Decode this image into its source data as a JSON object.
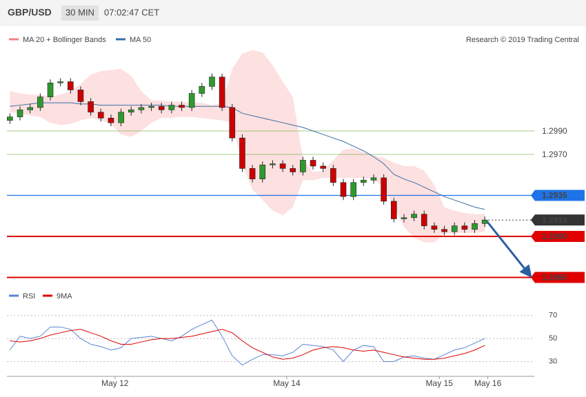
{
  "header": {
    "symbol": "GBP/USD",
    "interval": "30 MIN",
    "time": "07:02:47 CET"
  },
  "credit": "Research © 2019 Trading Central",
  "chart_data": [
    {
      "type": "candlestick",
      "up_color": "#2e9a2e",
      "down_color": "#cc0000",
      "open": [
        1.2999,
        1.3002,
        1.3008,
        1.301,
        1.3019,
        1.3031,
        1.3032,
        1.3025,
        1.3015,
        1.3006,
        1.3001,
        1.2997,
        1.3006,
        1.3008,
        1.301,
        1.3011,
        1.3008,
        1.3012,
        1.301,
        1.3022,
        1.3028,
        1.3036,
        1.301,
        1.2984,
        1.2958,
        1.2949,
        1.2961,
        1.2962,
        1.2958,
        1.2955,
        1.2965,
        1.296,
        1.2958,
        1.2946,
        1.2934,
        1.2946,
        1.2948,
        1.295,
        1.293,
        1.2915,
        1.2916,
        1.2919,
        1.2909,
        1.2906,
        1.2904,
        1.2909,
        1.2906,
        1.2911
      ],
      "high": [
        1.3005,
        1.3011,
        1.3013,
        1.3022,
        1.3034,
        1.3035,
        1.3035,
        1.3028,
        1.3018,
        1.3009,
        1.3004,
        1.3009,
        1.3011,
        1.3013,
        1.3014,
        1.3014,
        1.3015,
        1.3015,
        1.3025,
        1.3031,
        1.3039,
        1.3039,
        1.3013,
        1.2987,
        1.2961,
        1.2964,
        1.2965,
        1.2965,
        1.2961,
        1.2968,
        1.2968,
        1.2963,
        1.2961,
        1.2949,
        1.2949,
        1.2951,
        1.2953,
        1.2953,
        1.2933,
        1.2919,
        1.2922,
        1.2922,
        1.2912,
        1.2909,
        1.2912,
        1.2912,
        1.2914,
        1.2917
      ],
      "low": [
        1.2996,
        1.2999,
        1.3005,
        1.3007,
        1.3016,
        1.3028,
        1.3022,
        1.3012,
        1.3003,
        1.2998,
        1.2994,
        1.2994,
        1.3003,
        1.3005,
        1.3007,
        1.3005,
        1.3005,
        1.3007,
        1.3007,
        1.3019,
        1.3025,
        1.3007,
        1.2981,
        1.2955,
        1.2946,
        1.2946,
        1.2958,
        1.2955,
        1.2952,
        1.2952,
        1.2957,
        1.2955,
        1.2943,
        1.2931,
        1.2931,
        1.2943,
        1.2945,
        1.2927,
        1.2912,
        1.2912,
        1.2913,
        1.2906,
        1.2903,
        1.2901,
        1.2901,
        1.2903,
        1.2903,
        1.2908
      ],
      "close": [
        1.3002,
        1.3008,
        1.301,
        1.3019,
        1.3031,
        1.3032,
        1.3025,
        1.3015,
        1.3006,
        1.3001,
        1.2997,
        1.3006,
        1.3008,
        1.301,
        1.3011,
        1.3008,
        1.3012,
        1.301,
        1.3022,
        1.3028,
        1.3036,
        1.301,
        1.2984,
        1.2958,
        1.2949,
        1.2961,
        1.2962,
        1.2958,
        1.2955,
        1.2965,
        1.296,
        1.2958,
        1.2946,
        1.2934,
        1.2946,
        1.2948,
        1.295,
        1.293,
        1.2915,
        1.2916,
        1.2919,
        1.2909,
        1.2906,
        1.2904,
        1.2909,
        1.2906,
        1.2911,
        1.2914
      ],
      "band": {
        "name": "MA 20 + Bollinger Bands",
        "color": "#f08080",
        "fill": "#fde0e0",
        "upper": [
          1.3024,
          1.3022,
          1.3021,
          1.3021,
          1.3019,
          1.3021,
          1.3024,
          1.303,
          1.3038,
          1.3041,
          1.3042,
          1.3043,
          1.3037,
          1.3024,
          1.3016,
          1.3016,
          1.3015,
          1.3015,
          1.3014,
          1.3014,
          1.3012,
          1.3014,
          1.3043,
          1.3056,
          1.3059,
          1.3057,
          1.3046,
          1.3032,
          1.3019,
          1.2966,
          1.2955,
          1.2956,
          1.2965,
          1.2974,
          1.2975,
          1.2972,
          1.2969,
          1.2967,
          1.2963,
          1.296,
          1.296,
          1.2956,
          1.2944,
          1.2925,
          1.2922,
          1.292,
          1.2919,
          1.2919
        ],
        "lower": [
          1.3006,
          1.3005,
          1.3003,
          1.3002,
          1.2997,
          1.2995,
          1.2996,
          1.2999,
          1.3001,
          1.2999,
          1.2996,
          1.2987,
          1.2985,
          1.299,
          1.2997,
          1.3001,
          1.3001,
          1.3002,
          1.3002,
          1.3001,
          1.3,
          1.2999,
          1.2997,
          1.2961,
          1.294,
          1.2931,
          1.2922,
          1.2918,
          1.2925,
          1.2948,
          1.2948,
          1.295,
          1.295,
          1.295,
          1.295,
          1.295,
          1.2949,
          1.2942,
          1.2925,
          1.2908,
          1.2899,
          1.2895,
          1.2895,
          1.2902,
          1.2903,
          1.2903,
          1.2903,
          1.2904
        ]
      },
      "series": [
        {
          "name": "MA 50",
          "color": "#3a6ea5",
          "values": [
            1.3011,
            1.3012,
            1.3013,
            1.3014,
            1.3014,
            1.3014,
            1.3014,
            1.3013,
            1.3013,
            1.3012,
            1.3012,
            1.3012,
            1.3012,
            1.3012,
            1.3012,
            1.3012,
            1.3011,
            1.3011,
            1.3011,
            1.3011,
            1.3011,
            1.3011,
            1.301,
            1.3005,
            1.3003,
            1.3001,
            1.2999,
            1.2997,
            1.2995,
            1.2993,
            1.299,
            1.2987,
            1.2984,
            1.2981,
            1.2977,
            1.2973,
            1.2968,
            1.2962,
            1.2953,
            1.2949,
            1.2946,
            1.2942,
            1.2938,
            1.2934,
            1.2931,
            1.2928,
            1.2925,
            1.2923
          ]
        }
      ],
      "levels": [
        {
          "value": 1.299,
          "label": "1.2990",
          "color": "#4a9a1a",
          "kind": "guide"
        },
        {
          "value": 1.297,
          "label": "1.2970",
          "color": "#4a9a1a",
          "kind": "guide"
        },
        {
          "value": 1.2935,
          "label": "1.2935",
          "color": "#1e73e8",
          "kind": "level"
        },
        {
          "value": 1.2914,
          "label": "1.2914",
          "color": "#333333",
          "kind": "last"
        },
        {
          "value": 1.29,
          "label": "1.2900",
          "color": "#e00000",
          "kind": "key"
        },
        {
          "value": 1.2865,
          "label": "1.2865",
          "color": "#e00000",
          "kind": "key"
        }
      ],
      "ylim": [
        1.28606,
        1.30782
      ],
      "xlim": [
        -0.3,
        51.9
      ]
    },
    {
      "type": "line",
      "series": [
        {
          "name": "RSI",
          "color": "#5b83d6",
          "values": [
            40,
            52,
            50,
            52,
            60,
            60,
            58,
            50,
            45,
            43,
            40,
            42,
            50,
            51,
            52,
            50,
            48,
            52,
            58,
            62,
            66,
            52,
            35,
            27,
            32,
            36,
            36,
            35,
            38,
            45,
            44,
            43,
            40,
            30,
            40,
            44,
            43,
            30,
            30,
            34,
            35,
            33,
            32,
            36,
            40,
            42,
            46,
            50
          ]
        },
        {
          "name": "9MA",
          "color": "#e00000",
          "values": [
            48,
            47,
            48,
            50,
            53,
            55,
            57,
            58,
            55,
            52,
            48,
            45,
            45,
            47,
            49,
            50,
            50,
            51,
            52,
            54,
            56,
            58,
            55,
            48,
            42,
            38,
            34,
            32,
            33,
            36,
            40,
            42,
            43,
            42,
            40,
            39,
            40,
            38,
            36,
            34,
            33,
            32,
            32,
            33,
            35,
            37,
            40,
            44
          ]
        }
      ],
      "ylim": [
        19,
        80
      ],
      "yticks": [
        30,
        50,
        70
      ],
      "xlim": [
        -0.3,
        51.9
      ],
      "xticks": [
        {
          "value": 10.4,
          "label": "May 12"
        },
        {
          "value": 27.4,
          "label": "May 14"
        },
        {
          "value": 42.5,
          "label": "May 15"
        },
        {
          "value": 47.3,
          "label": "May 16"
        }
      ]
    }
  ]
}
